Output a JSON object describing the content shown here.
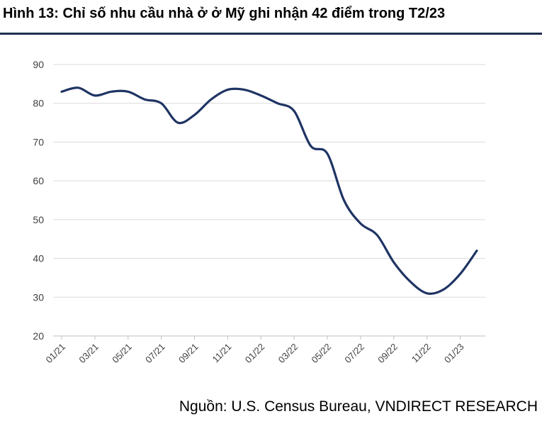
{
  "header": {
    "title": "Hình 13: Chỉ số nhu cầu nhà ở ở Mỹ ghi nhận 42 điểm trong T2/23"
  },
  "footer": {
    "source": "Nguồn: U.S. Census Bureau, VNDIRECT RESEARCH"
  },
  "chart_data": {
    "type": "line",
    "title": "Hình 13: Chỉ số nhu cầu nhà ở ở Mỹ ghi nhận 42 điểm trong T2/23",
    "xlabel": "",
    "ylabel": "",
    "ylim": [
      20,
      90
    ],
    "yticks": [
      20,
      30,
      40,
      50,
      60,
      70,
      80,
      90
    ],
    "grid": true,
    "line_color": "#1f3464",
    "categories": [
      "01/21",
      "02/21",
      "03/21",
      "04/21",
      "05/21",
      "06/21",
      "07/21",
      "08/21",
      "09/21",
      "10/21",
      "11/21",
      "12/21",
      "01/22",
      "02/22",
      "03/22",
      "04/22",
      "05/22",
      "06/22",
      "07/22",
      "08/22",
      "09/22",
      "10/22",
      "11/22",
      "12/22",
      "01/23",
      "02/23"
    ],
    "xtick_labels": [
      "01/21",
      "03/21",
      "05/21",
      "07/21",
      "09/21",
      "11/21",
      "01/22",
      "03/22",
      "05/22",
      "07/22",
      "09/22",
      "11/22",
      "01/23"
    ],
    "series": [
      {
        "name": "",
        "values": [
          83,
          84,
          82,
          83,
          83,
          81,
          80,
          75,
          77,
          81,
          83.5,
          83.5,
          82,
          80,
          78,
          69,
          67,
          55,
          49,
          46,
          39,
          34,
          31,
          32,
          36,
          42
        ]
      }
    ]
  }
}
